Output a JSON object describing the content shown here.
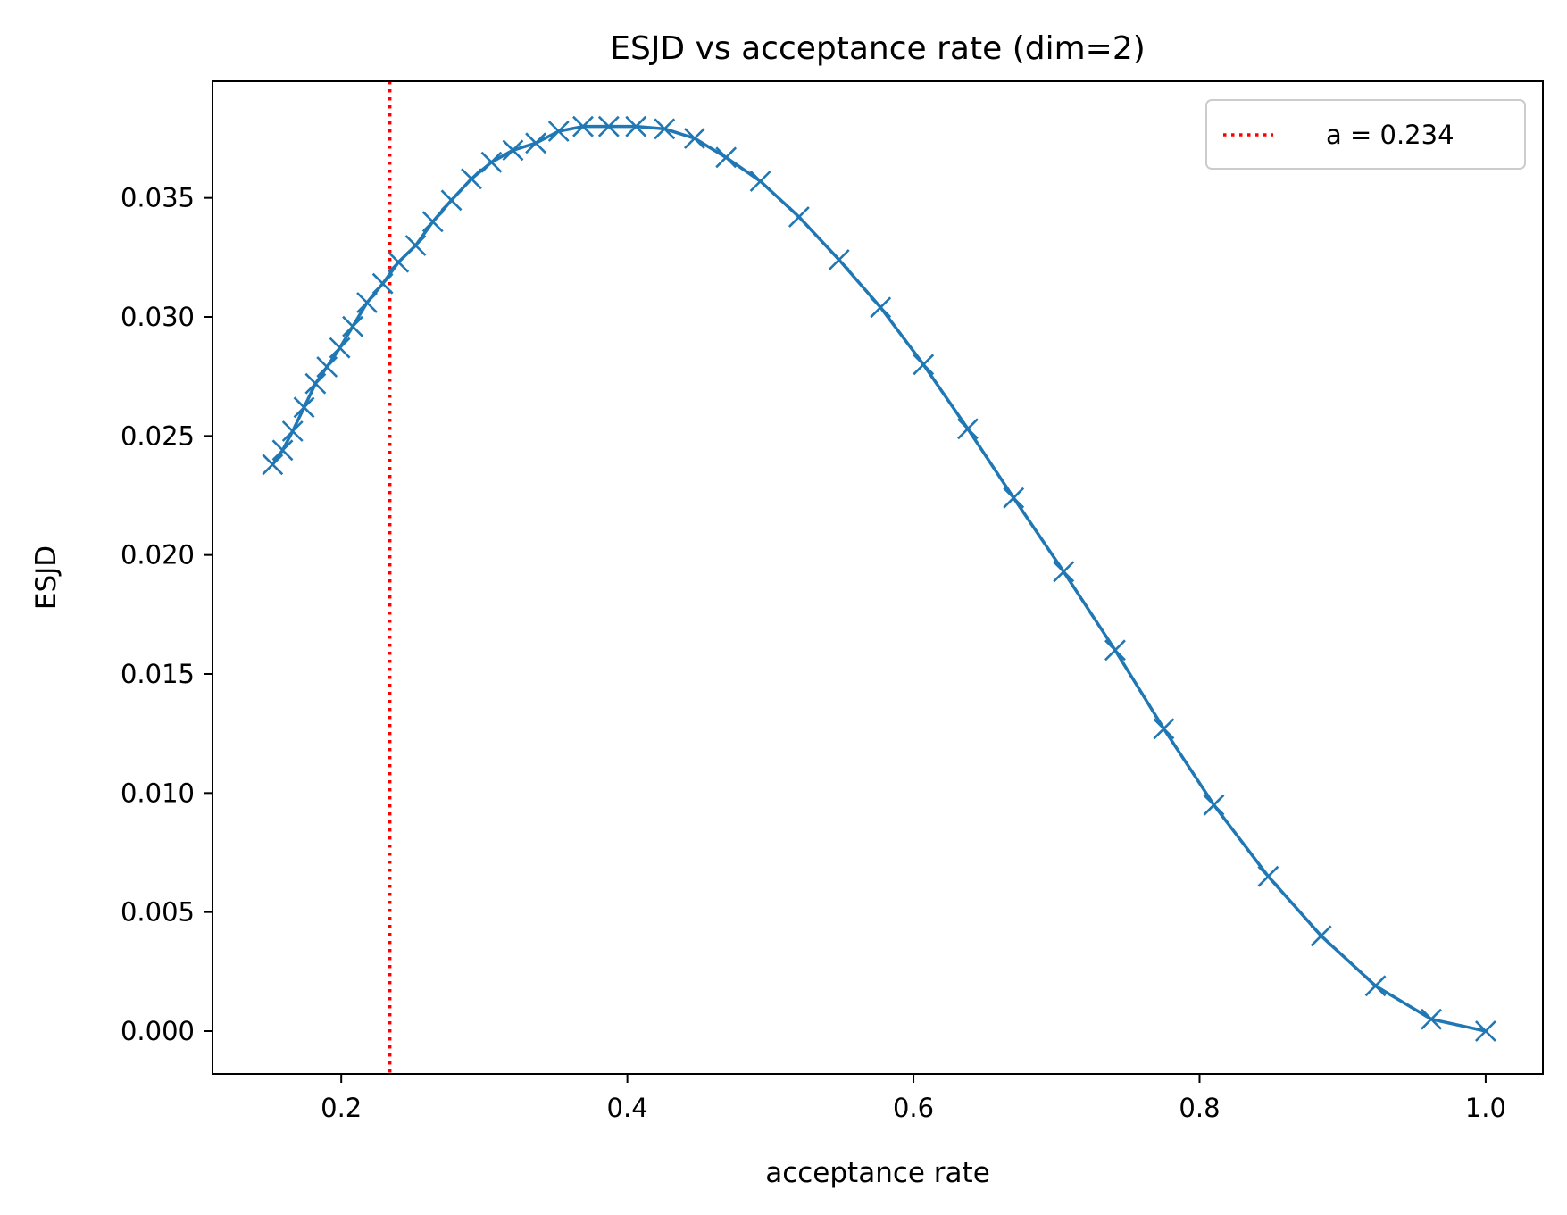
{
  "chart_data": {
    "type": "line",
    "title": "ESJD vs acceptance rate (dim=2)",
    "xlabel": "acceptance rate",
    "ylabel": "ESJD",
    "xlim": [
      0.11,
      1.04
    ],
    "ylim": [
      -0.0018,
      0.0399
    ],
    "xticks": [
      0.2,
      0.4,
      0.6,
      0.8,
      1.0
    ],
    "xtick_labels": [
      "0.2",
      "0.4",
      "0.6",
      "0.8",
      "1.0"
    ],
    "yticks": [
      0.0,
      0.005,
      0.01,
      0.015,
      0.02,
      0.025,
      0.03,
      0.035
    ],
    "ytick_labels": [
      "0.000",
      "0.005",
      "0.010",
      "0.015",
      "0.020",
      "0.025",
      "0.030",
      "0.035"
    ],
    "grid": false,
    "legend_position": "top-right",
    "series": [
      {
        "name": "ESJD",
        "color": "#1f77b4",
        "marker": "x",
        "x": [
          0.152,
          0.159,
          0.166,
          0.174,
          0.182,
          0.19,
          0.199,
          0.208,
          0.218,
          0.229,
          0.24,
          0.252,
          0.264,
          0.277,
          0.291,
          0.305,
          0.32,
          0.336,
          0.352,
          0.369,
          0.387,
          0.406,
          0.426,
          0.447,
          0.469,
          0.493,
          0.52,
          0.548,
          0.577,
          0.607,
          0.638,
          0.67,
          0.705,
          0.741,
          0.775,
          0.81,
          0.848,
          0.885,
          0.923,
          0.962,
          1.0
        ],
        "y": [
          0.0238,
          0.0244,
          0.0252,
          0.0262,
          0.0272,
          0.0279,
          0.0287,
          0.0296,
          0.0306,
          0.0314,
          0.0323,
          0.033,
          0.034,
          0.0349,
          0.0358,
          0.0365,
          0.037,
          0.0373,
          0.0378,
          0.038,
          0.038,
          0.038,
          0.0379,
          0.0375,
          0.0367,
          0.0357,
          0.0342,
          0.0324,
          0.0304,
          0.028,
          0.0253,
          0.0224,
          0.0193,
          0.016,
          0.0127,
          0.0095,
          0.0065,
          0.004,
          0.0019,
          0.0005,
          0.0
        ]
      }
    ],
    "vline": {
      "x": 0.234,
      "label": "a = 0.234",
      "color": "#ff0000",
      "style": "dotted"
    }
  }
}
